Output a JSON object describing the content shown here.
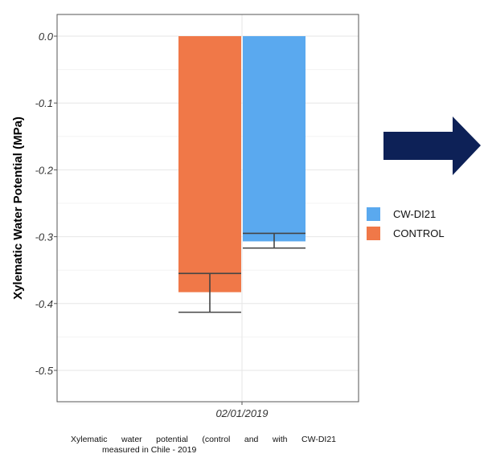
{
  "chart_data": {
    "type": "bar",
    "title": "",
    "xlabel": "",
    "ylabel": "Xylematic Water Potential (MPa)",
    "categories": [
      "02/01/2019"
    ],
    "ylim": [
      -0.55,
      0.0
    ],
    "yticks": [
      0.0,
      -0.1,
      -0.2,
      -0.3,
      -0.4,
      -0.5
    ],
    "ytick_labels": [
      "0.0",
      "-0.1",
      "-0.2",
      "-0.3",
      "-0.4",
      "-0.5"
    ],
    "grid": true,
    "legend_position": "right",
    "series": [
      {
        "name": "CONTROL",
        "values": [
          -0.383
        ],
        "error": [
          [
            -0.413,
            -0.355
          ]
        ],
        "color": "#f07848"
      },
      {
        "name": "CW-DI21",
        "values": [
          -0.307
        ],
        "error": [
          [
            -0.317,
            -0.295
          ]
        ],
        "color": "#5aa9ef"
      }
    ],
    "legend": [
      "CW-DI21",
      "CONTROL"
    ]
  },
  "caption": {
    "line1": "Xylematic water potential (control and with CW-DI21",
    "line2": "measured in Chile - 2019"
  },
  "arrow": {
    "color": "#0d2157",
    "icon": "right-arrow-icon"
  }
}
